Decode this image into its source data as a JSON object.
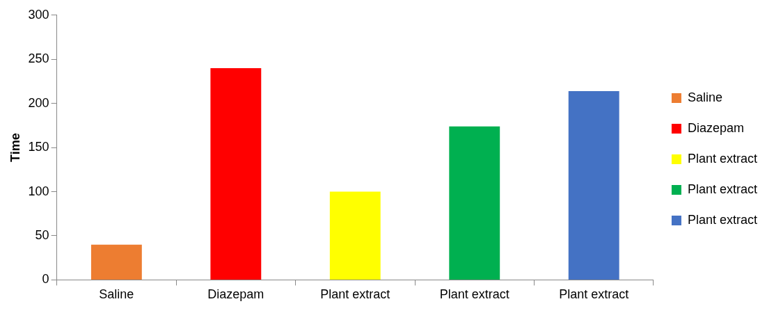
{
  "chart_data": {
    "type": "bar",
    "ylabel": "Time",
    "categories": [
      "Saline",
      "Diazepam",
      "Plant extract",
      "Plant extract",
      "Plant extract"
    ],
    "series": [
      {
        "name": "Saline",
        "color": "#ed7d31",
        "values": [
          40,
          null,
          null,
          null,
          null
        ]
      },
      {
        "name": "Diazepam",
        "color": "#ff0000",
        "values": [
          null,
          240,
          null,
          null,
          null
        ]
      },
      {
        "name": "Plant extract",
        "color": "#ffff00",
        "values": [
          null,
          null,
          100,
          null,
          null
        ]
      },
      {
        "name": "Plant extract",
        "color": "#00b050",
        "values": [
          null,
          null,
          null,
          174,
          null
        ]
      },
      {
        "name": "Plant extract",
        "color": "#4472c4",
        "values": [
          null,
          null,
          null,
          null,
          214
        ]
      }
    ],
    "ylim": [
      0,
      300
    ],
    "yticks": [
      0,
      50,
      100,
      150,
      200,
      250,
      300
    ],
    "grid": false,
    "legend": "right"
  }
}
